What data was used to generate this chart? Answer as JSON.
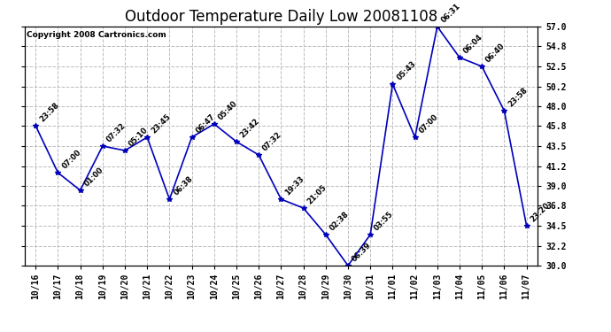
{
  "title": "Outdoor Temperature Daily Low 20081108",
  "copyright": "Copyright 2008 Cartronics.com",
  "x_labels": [
    "10/16",
    "10/17",
    "10/18",
    "10/19",
    "10/20",
    "10/21",
    "10/22",
    "10/23",
    "10/24",
    "10/25",
    "10/26",
    "10/27",
    "10/28",
    "10/29",
    "10/30",
    "10/31",
    "11/01",
    "11/02",
    "11/03",
    "11/04",
    "11/05",
    "11/06",
    "11/07"
  ],
  "y_values": [
    45.8,
    40.5,
    38.5,
    43.5,
    43.0,
    44.5,
    37.5,
    44.5,
    46.0,
    44.0,
    42.5,
    37.5,
    36.5,
    33.5,
    30.0,
    33.5,
    50.5,
    44.5,
    57.0,
    53.5,
    52.5,
    47.5,
    34.5
  ],
  "point_labels": [
    "23:58",
    "07:00",
    "01:00",
    "07:32",
    "05:10",
    "23:45",
    "06:38",
    "06:47",
    "05:40",
    "23:42",
    "07:32",
    "19:33",
    "21:05",
    "02:38",
    "06:39",
    "03:55",
    "05:43",
    "07:00",
    "06:31",
    "06:04",
    "06:40",
    "23:58",
    "23:20"
  ],
  "ylim_min": 30.0,
  "ylim_max": 57.0,
  "yticks": [
    30.0,
    32.2,
    34.5,
    36.8,
    39.0,
    41.2,
    43.5,
    45.8,
    48.0,
    50.2,
    52.5,
    54.8,
    57.0
  ],
  "ytick_labels": [
    "30.0",
    "32.2",
    "34.5",
    "36.8",
    "39.0",
    "41.2",
    "43.5",
    "45.8",
    "48.0",
    "50.2",
    "52.5",
    "54.8",
    "57.0"
  ],
  "line_color": "#0000bb",
  "marker_color": "#0000bb",
  "bg_color": "#ffffff",
  "grid_color": "#bbbbbb",
  "title_fontsize": 12,
  "point_label_fontsize": 6,
  "tick_fontsize": 7,
  "copyright_fontsize": 6.5
}
